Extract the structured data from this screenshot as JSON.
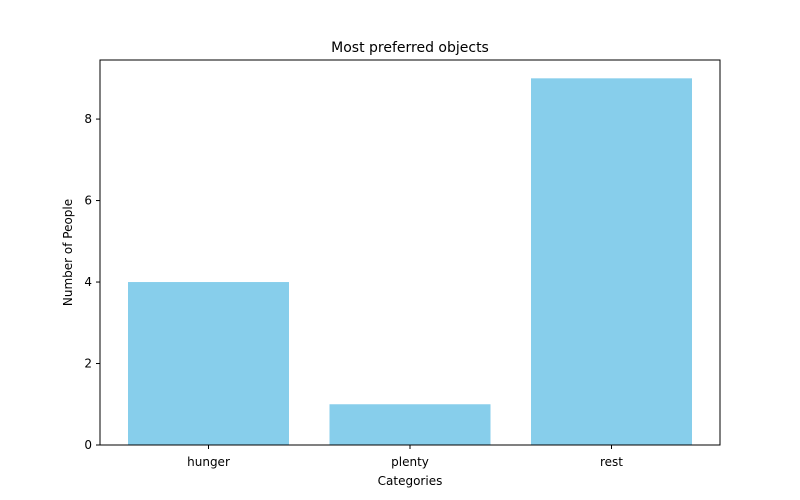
{
  "chart_data": {
    "type": "bar",
    "title": "Most preferred objects",
    "xlabel": "Categories",
    "ylabel": "Number of People",
    "categories": [
      "hunger",
      "plenty",
      "rest"
    ],
    "values": [
      4,
      1,
      9
    ],
    "ylim": [
      0,
      9.45
    ],
    "yticks": [
      0,
      2,
      4,
      6,
      8
    ],
    "bar_color": "#87CEEB",
    "grid": false,
    "legend": "none"
  }
}
